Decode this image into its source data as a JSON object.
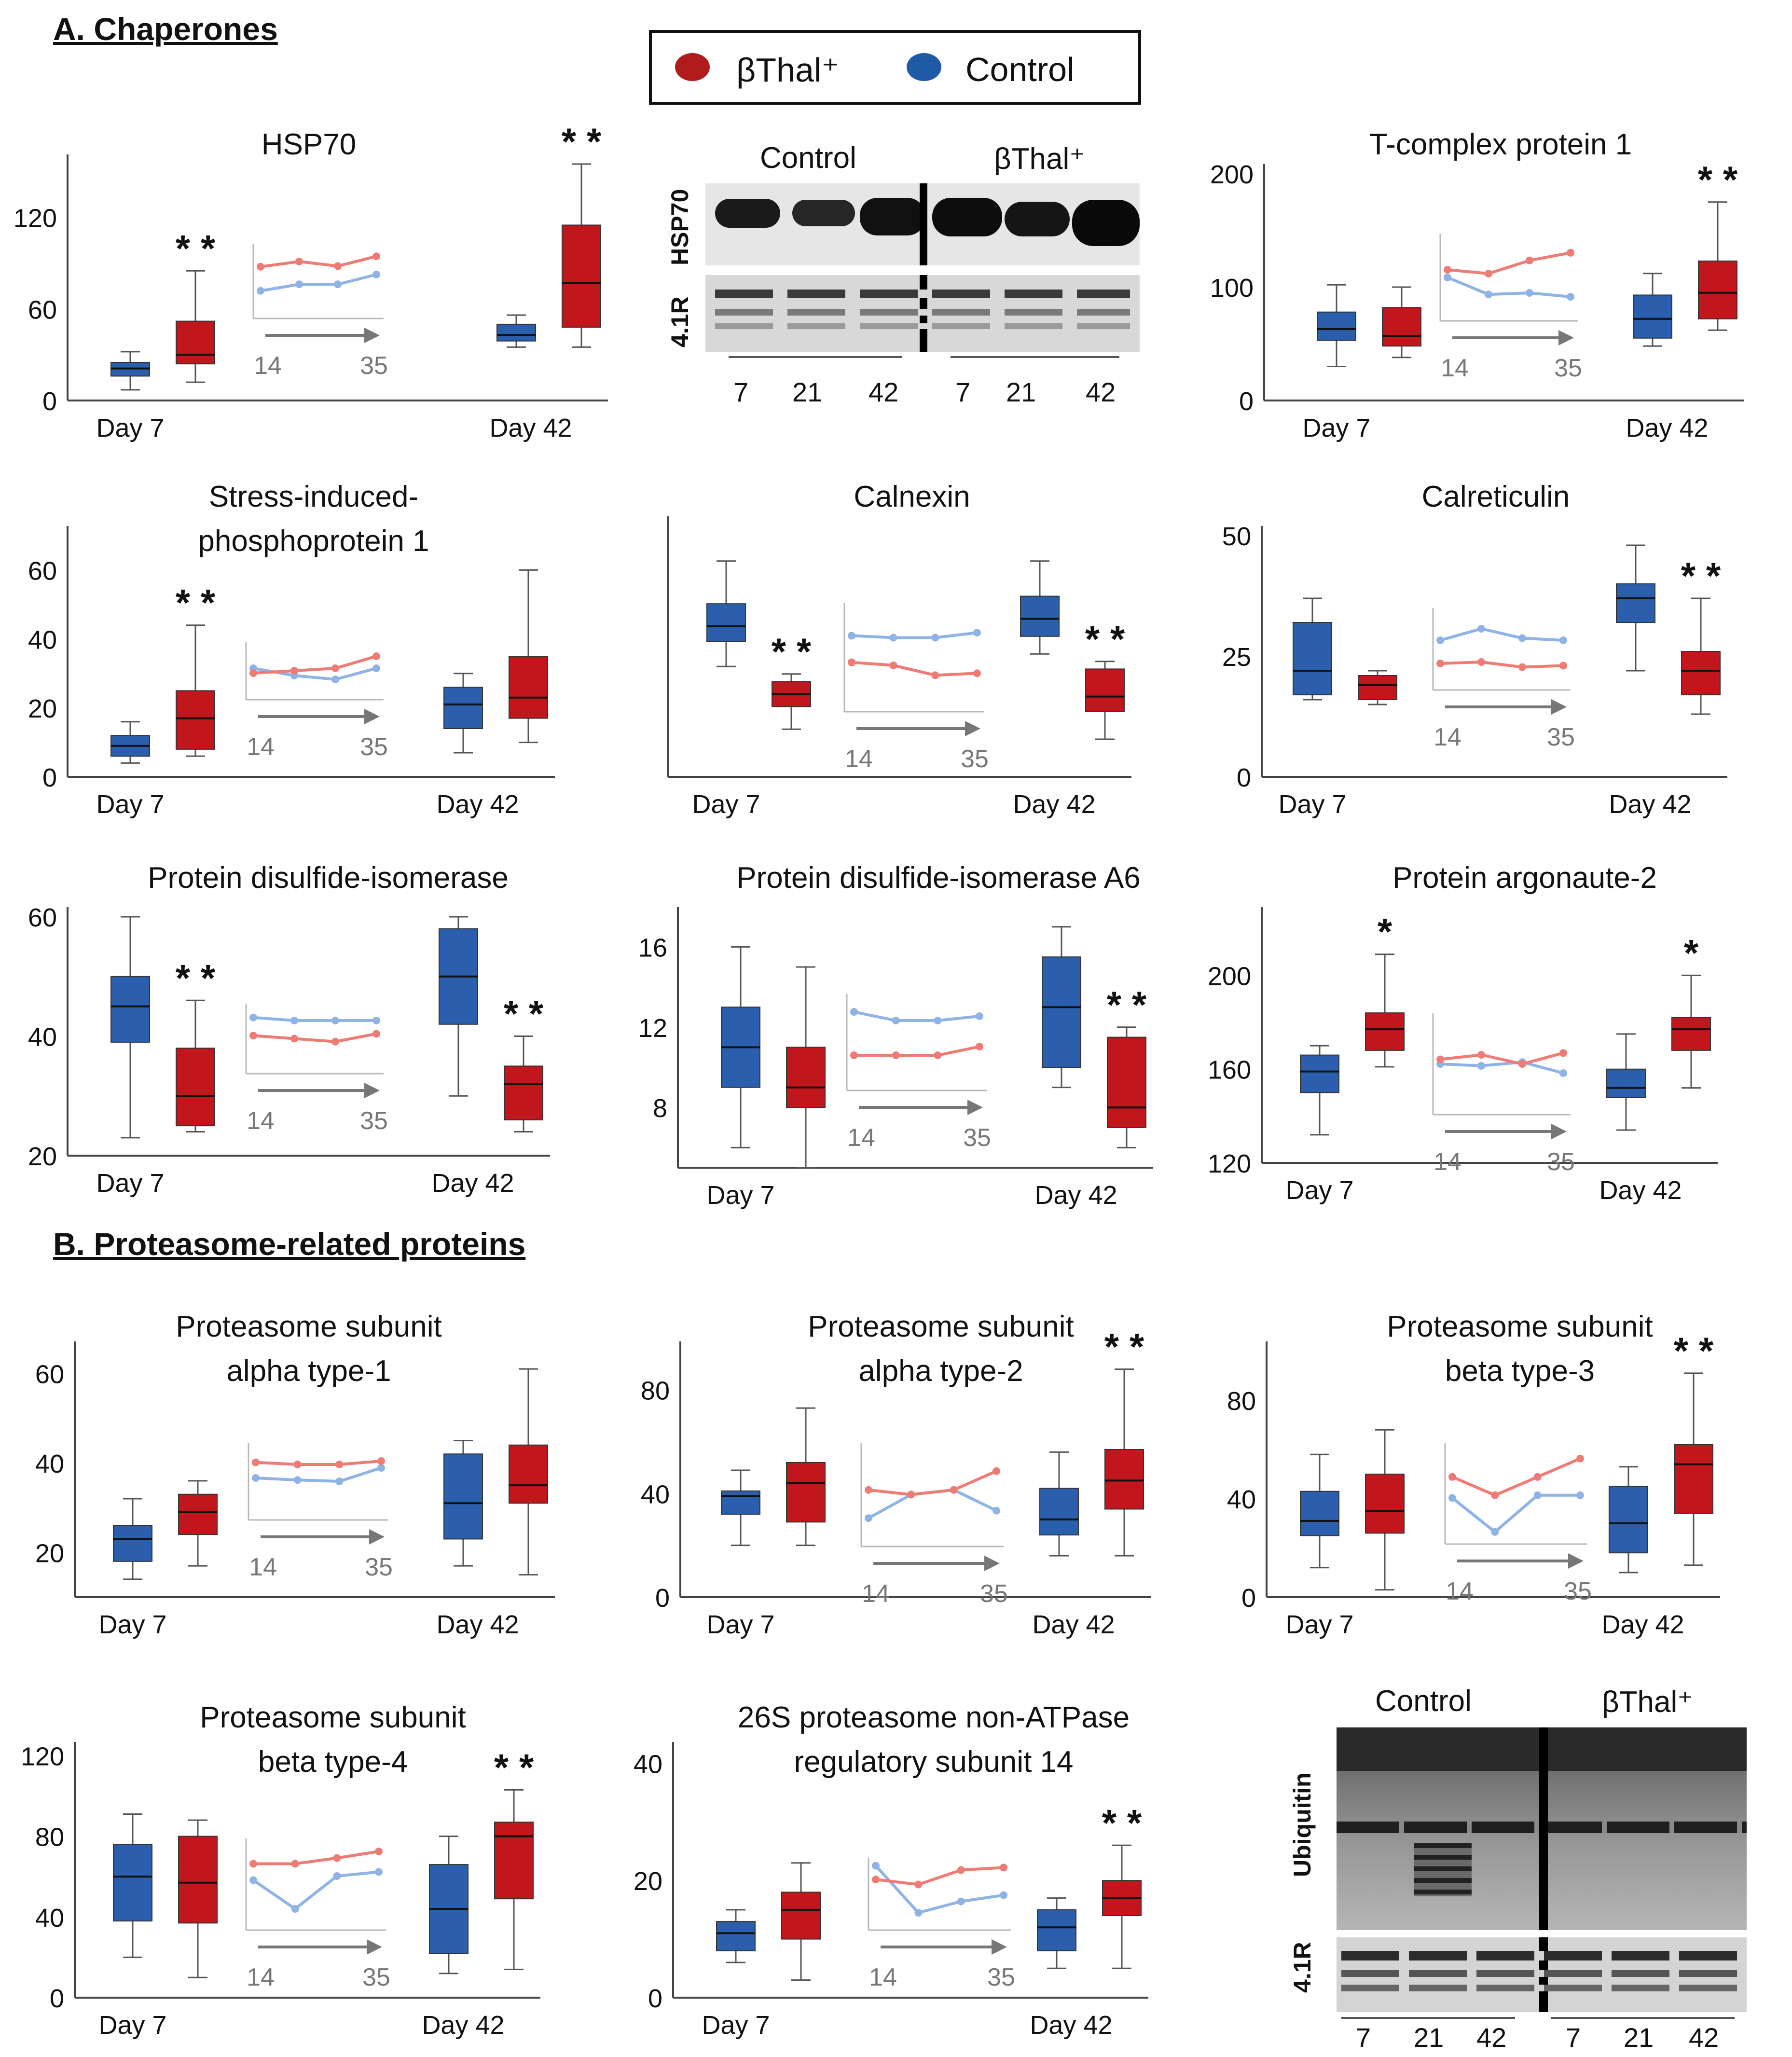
{
  "sections": {
    "a": "A. Chaperones",
    "b": "B. Proteasome-related proteins"
  },
  "legend": {
    "items": [
      {
        "label": "βThal⁺",
        "color": "#b01c1c"
      },
      {
        "label": "Control",
        "color": "#1f5aa6"
      }
    ]
  },
  "colors": {
    "control_box": "#2b5fad",
    "bthal_box": "#c0161c",
    "control_line": "#8fb3e4",
    "bthal_line": "#ef7b75",
    "inset_axis": "#b8b8b8",
    "arrow": "#777777"
  },
  "blots": {
    "hsp70": {
      "headers": [
        "Control",
        "βThal⁺"
      ],
      "rows": [
        "HSP70",
        "4.1R"
      ],
      "lanes": [
        "7",
        "21",
        "42",
        "7",
        "21",
        "42"
      ]
    },
    "ubiquitin": {
      "headers": [
        "Control",
        "βThal⁺"
      ],
      "rows": [
        "Ubiquitin",
        "4.1R"
      ],
      "lanes": [
        "7",
        "21",
        "42",
        "7",
        "21",
        "42"
      ]
    }
  },
  "chart_data": [
    {
      "id": "hsp70",
      "type": "box",
      "title": [
        "HSP70"
      ],
      "categories": [
        "Day 7",
        "Day 42"
      ],
      "yticks": [
        "0",
        "60",
        "120"
      ],
      "ylim": [
        0,
        155
      ],
      "boxes": [
        {
          "day": "Day 7",
          "group": "Control",
          "min": 7,
          "q1": 16,
          "median": 21,
          "q3": 25,
          "max": 32
        },
        {
          "day": "Day 7",
          "group": "βThal⁺",
          "min": 12,
          "q1": 24,
          "median": 30,
          "q3": 52,
          "max": 85
        },
        {
          "day": "Day 42",
          "group": "Control",
          "min": 35,
          "q1": 39,
          "median": 43,
          "q3": 50,
          "max": 56
        },
        {
          "day": "Day 42",
          "group": "βThal⁺",
          "min": 35,
          "q1": 48,
          "median": 77,
          "q3": 115,
          "max": 155
        }
      ],
      "significance": [
        {
          "day": "Day 7",
          "label": "* *"
        },
        {
          "day": "Day 42",
          "label": "* *"
        }
      ],
      "inset": {
        "xlabels": [
          "14",
          "35"
        ],
        "control": [
          0.35,
          0.45,
          0.45,
          0.6
        ],
        "bthal": [
          0.72,
          0.8,
          0.73,
          0.88
        ]
      }
    },
    {
      "id": "tcp1",
      "type": "box",
      "title": [
        "T-complex protein 1"
      ],
      "categories": [
        "Day 7",
        "Day 42"
      ],
      "yticks": [
        "0",
        "100",
        "200"
      ],
      "ylim": [
        0,
        200
      ],
      "boxes": [
        {
          "day": "Day 7",
          "group": "Control",
          "min": 30,
          "q1": 53,
          "median": 63,
          "q3": 78,
          "max": 102
        },
        {
          "day": "Day 7",
          "group": "βThal⁺",
          "min": 38,
          "q1": 48,
          "median": 57,
          "q3": 82,
          "max": 100
        },
        {
          "day": "Day 42",
          "group": "Control",
          "min": 48,
          "q1": 55,
          "median": 72,
          "q3": 93,
          "max": 112
        },
        {
          "day": "Day 42",
          "group": "βThal⁺",
          "min": 62,
          "q1": 72,
          "median": 95,
          "q3": 123,
          "max": 175
        }
      ],
      "significance": [
        {
          "day": "Day 42",
          "label": "* *"
        }
      ],
      "inset": {
        "xlabels": [
          "14",
          "35"
        ],
        "control": [
          0.5,
          0.28,
          0.3,
          0.25
        ],
        "bthal": [
          0.6,
          0.55,
          0.72,
          0.82
        ]
      }
    },
    {
      "id": "stip1",
      "type": "box",
      "title": [
        "Stress-induced-",
        "phosphoprotein 1"
      ],
      "categories": [
        "Day 7",
        "Day 42"
      ],
      "yticks": [
        "0",
        "20",
        "40",
        "60"
      ],
      "ylim": [
        0,
        70
      ],
      "boxes": [
        {
          "day": "Day 7",
          "group": "Control",
          "min": 4,
          "q1": 6,
          "median": 9,
          "q3": 12,
          "max": 16
        },
        {
          "day": "Day 7",
          "group": "βThal⁺",
          "min": 6,
          "q1": 8,
          "median": 17,
          "q3": 25,
          "max": 44
        },
        {
          "day": "Day 42",
          "group": "Control",
          "min": 7,
          "q1": 14,
          "median": 21,
          "q3": 26,
          "max": 30
        },
        {
          "day": "Day 42",
          "group": "βThal⁺",
          "min": 10,
          "q1": 17,
          "median": 23,
          "q3": 35,
          "max": 60
        }
      ],
      "significance": [
        {
          "day": "Day 7",
          "label": "* *"
        }
      ],
      "inset": {
        "xlabels": [
          "14",
          "35"
        ],
        "control": [
          0.55,
          0.4,
          0.32,
          0.55
        ],
        "bthal": [
          0.45,
          0.5,
          0.55,
          0.8
        ]
      }
    },
    {
      "id": "calnexin",
      "type": "box",
      "title": [
        "Calnexin"
      ],
      "categories": [
        "Day 7",
        "Day 42"
      ],
      "yticks": [],
      "ylim": [
        0,
        100
      ],
      "boxes": [
        {
          "day": "Day 7",
          "group": "Control",
          "min": 44,
          "q1": 54,
          "median": 60,
          "q3": 69,
          "max": 86
        },
        {
          "day": "Day 7",
          "group": "βThal⁺",
          "min": 19,
          "q1": 28,
          "median": 33,
          "q3": 38,
          "max": 41
        },
        {
          "day": "Day 42",
          "group": "Control",
          "min": 49,
          "q1": 56,
          "median": 63,
          "q3": 72,
          "max": 86
        },
        {
          "day": "Day 42",
          "group": "βThal⁺",
          "min": 15,
          "q1": 26,
          "median": 32,
          "q3": 43,
          "max": 46
        }
      ],
      "significance": [
        {
          "day": "Day 7",
          "label": "* *"
        },
        {
          "day": "Day 42",
          "label": "* *"
        }
      ],
      "inset": {
        "xlabels": [
          "14",
          "35"
        ],
        "control": [
          0.72,
          0.7,
          0.7,
          0.75
        ],
        "bthal": [
          0.45,
          0.42,
          0.32,
          0.34
        ]
      }
    },
    {
      "id": "calreticulin",
      "type": "box",
      "title": [
        "Calreticulin"
      ],
      "categories": [
        "Day 7",
        "Day 42"
      ],
      "yticks": [
        "0",
        "25",
        "50"
      ],
      "ylim": [
        0,
        50
      ],
      "boxes": [
        {
          "day": "Day 7",
          "group": "Control",
          "min": 16,
          "q1": 17,
          "median": 22,
          "q3": 32,
          "max": 37
        },
        {
          "day": "Day 7",
          "group": "βThal⁺",
          "min": 15,
          "q1": 16,
          "median": 19,
          "q3": 21,
          "max": 22
        },
        {
          "day": "Day 42",
          "group": "Control",
          "min": 22,
          "q1": 32,
          "median": 37,
          "q3": 40,
          "max": 48
        },
        {
          "day": "Day 42",
          "group": "βThal⁺",
          "min": 13,
          "q1": 17,
          "median": 22,
          "q3": 26,
          "max": 37
        }
      ],
      "significance": [
        {
          "day": "Day 42",
          "label": "* *"
        }
      ],
      "inset": {
        "xlabels": [
          "14",
          "35"
        ],
        "control": [
          0.62,
          0.78,
          0.65,
          0.62
        ],
        "bthal": [
          0.3,
          0.32,
          0.25,
          0.27
        ]
      }
    },
    {
      "id": "pdi",
      "type": "box",
      "title": [
        "Protein disulfide-isomerase"
      ],
      "categories": [
        "Day 7",
        "Day 42"
      ],
      "yticks": [
        "20",
        "40",
        "60"
      ],
      "ylim": [
        20,
        60
      ],
      "boxes": [
        {
          "day": "Day 7",
          "group": "Control",
          "min": 23,
          "q1": 39,
          "median": 45,
          "q3": 50,
          "max": 60
        },
        {
          "day": "Day 7",
          "group": "βThal⁺",
          "min": 24,
          "q1": 25,
          "median": 30,
          "q3": 38,
          "max": 46
        },
        {
          "day": "Day 42",
          "group": "Control",
          "min": 30,
          "q1": 42,
          "median": 50,
          "q3": 58,
          "max": 60
        },
        {
          "day": "Day 42",
          "group": "βThal⁺",
          "min": 24,
          "q1": 26,
          "median": 32,
          "q3": 35,
          "max": 40
        }
      ],
      "significance": [
        {
          "day": "Day 7",
          "label": "* *"
        },
        {
          "day": "Day 42",
          "label": "* *"
        }
      ],
      "inset": {
        "xlabels": [
          "14",
          "35"
        ],
        "control": [
          0.85,
          0.8,
          0.8,
          0.8
        ],
        "bthal": [
          0.55,
          0.5,
          0.45,
          0.58
        ]
      }
    },
    {
      "id": "pdia6",
      "type": "box",
      "title": [
        "Protein disulfide-isomerase A6"
      ],
      "categories": [
        "Day 7",
        "Day 42"
      ],
      "yticks": [
        "8",
        "12",
        "16"
      ],
      "ylim": [
        5,
        17.5
      ],
      "boxes": [
        {
          "day": "Day 7",
          "group": "Control",
          "min": 6,
          "q1": 9,
          "median": 11,
          "q3": 13,
          "max": 16
        },
        {
          "day": "Day 7",
          "group": "βThal⁺",
          "min": 5,
          "q1": 8,
          "median": 9,
          "q3": 11,
          "max": 15
        },
        {
          "day": "Day 42",
          "group": "Control",
          "min": 9,
          "q1": 10,
          "median": 13,
          "q3": 15.5,
          "max": 17
        },
        {
          "day": "Day 42",
          "group": "βThal⁺",
          "min": 6,
          "q1": 7,
          "median": 8,
          "q3": 11.5,
          "max": 12
        }
      ],
      "significance": [
        {
          "day": "Day 42",
          "label": "* *"
        }
      ],
      "inset": {
        "xlabels": [
          "14",
          "35"
        ],
        "control": [
          0.85,
          0.75,
          0.75,
          0.8
        ],
        "bthal": [
          0.35,
          0.35,
          0.35,
          0.45
        ]
      }
    },
    {
      "id": "ago2",
      "type": "box",
      "title": [
        "Protein argonaute-2"
      ],
      "categories": [
        "Day 7",
        "Day 42"
      ],
      "yticks": [
        "120",
        "160",
        "200"
      ],
      "ylim": [
        120,
        225
      ],
      "boxes": [
        {
          "day": "Day 7",
          "group": "Control",
          "min": 132,
          "q1": 150,
          "median": 159,
          "q3": 166,
          "max": 170
        },
        {
          "day": "Day 7",
          "group": "βThal⁺",
          "min": 161,
          "q1": 168,
          "median": 177,
          "q3": 184,
          "max": 209
        },
        {
          "day": "Day 42",
          "group": "Control",
          "min": 134,
          "q1": 148,
          "median": 152,
          "q3": 160,
          "max": 175
        },
        {
          "day": "Day 42",
          "group": "βThal⁺",
          "min": 152,
          "q1": 168,
          "median": 177,
          "q3": 182,
          "max": 200
        }
      ],
      "significance": [
        {
          "day": "Day 7",
          "label": "*"
        },
        {
          "day": "Day 42",
          "label": "*"
        }
      ],
      "inset": {
        "xlabels": [
          "14",
          "35"
        ],
        "control": [
          0.5,
          0.48,
          0.52,
          0.4
        ],
        "bthal": [
          0.55,
          0.6,
          0.5,
          0.62
        ]
      }
    },
    {
      "id": "psma1",
      "type": "box",
      "title": [
        "Proteasome subunit",
        "alpha type-1"
      ],
      "categories": [
        "Day 7",
        "Day 42"
      ],
      "yticks": [
        "20",
        "40",
        "60"
      ],
      "ylim": [
        10,
        65
      ],
      "boxes": [
        {
          "day": "Day 7",
          "group": "Control",
          "min": 14,
          "q1": 18,
          "median": 23,
          "q3": 26,
          "max": 32
        },
        {
          "day": "Day 7",
          "group": "βThal⁺",
          "min": 17,
          "q1": 24,
          "median": 29,
          "q3": 33,
          "max": 36
        },
        {
          "day": "Day 42",
          "group": "Control",
          "min": 17,
          "q1": 23,
          "median": 31,
          "q3": 42,
          "max": 45
        },
        {
          "day": "Day 42",
          "group": "βThal⁺",
          "min": 15,
          "q1": 31,
          "median": 35,
          "q3": 44,
          "max": 61
        }
      ],
      "significance": [],
      "inset": {
        "xlabels": [
          "14",
          "35"
        ],
        "control": [
          0.55,
          0.52,
          0.5,
          0.7
        ],
        "bthal": [
          0.78,
          0.75,
          0.75,
          0.8
        ]
      }
    },
    {
      "id": "psma2",
      "type": "box",
      "title": [
        "Proteasome subunit",
        "alpha type-2"
      ],
      "categories": [
        "Day 7",
        "Day 42"
      ],
      "yticks": [
        "0",
        "40",
        "80"
      ],
      "ylim": [
        0,
        95
      ],
      "boxes": [
        {
          "day": "Day 7",
          "group": "Control",
          "min": 20,
          "q1": 32,
          "median": 39,
          "q3": 41,
          "max": 49
        },
        {
          "day": "Day 7",
          "group": "βThal⁺",
          "min": 20,
          "q1": 29,
          "median": 44,
          "q3": 52,
          "max": 73
        },
        {
          "day": "Day 42",
          "group": "Control",
          "min": 16,
          "q1": 24,
          "median": 30,
          "q3": 42,
          "max": 56
        },
        {
          "day": "Day 42",
          "group": "βThal⁺",
          "min": 16,
          "q1": 34,
          "median": 45,
          "q3": 57,
          "max": 88
        }
      ],
      "significance": [
        {
          "day": "Day 42",
          "label": "* *"
        }
      ],
      "inset": {
        "xlabels": [
          "14",
          "35"
        ],
        "control": [
          0.25,
          0.5,
          0.55,
          0.33
        ],
        "bthal": [
          0.55,
          0.5,
          0.55,
          0.75
        ]
      }
    },
    {
      "id": "psmb3",
      "type": "box",
      "title": [
        "Proteasome subunit",
        "beta type-3"
      ],
      "categories": [
        "Day 7",
        "Day 42"
      ],
      "yticks": [
        "0",
        "40",
        "80"
      ],
      "ylim": [
        0,
        100
      ],
      "boxes": [
        {
          "day": "Day 7",
          "group": "Control",
          "min": 12,
          "q1": 25,
          "median": 31,
          "q3": 43,
          "max": 58
        },
        {
          "day": "Day 7",
          "group": "βThal⁺",
          "min": 3,
          "q1": 26,
          "median": 35,
          "q3": 50,
          "max": 68
        },
        {
          "day": "Day 42",
          "group": "Control",
          "min": 10,
          "q1": 18,
          "median": 30,
          "q3": 45,
          "max": 53
        },
        {
          "day": "Day 42",
          "group": "βThal⁺",
          "min": 13,
          "q1": 34,
          "median": 54,
          "q3": 62,
          "max": 91
        }
      ],
      "significance": [
        {
          "day": "Day 42",
          "label": "* *"
        }
      ],
      "inset": {
        "xlabels": [
          "14",
          "35"
        ],
        "control": [
          0.45,
          0.08,
          0.48,
          0.48
        ],
        "bthal": [
          0.68,
          0.48,
          0.68,
          0.88
        ]
      }
    },
    {
      "id": "psmb4",
      "type": "box",
      "title": [
        "Proteasome subunit",
        "beta type-4"
      ],
      "categories": [
        "Day 7",
        "Day 42"
      ],
      "yticks": [
        "0",
        "40",
        "80",
        "120"
      ],
      "ylim": [
        0,
        122
      ],
      "boxes": [
        {
          "day": "Day 7",
          "group": "Control",
          "min": 20,
          "q1": 38,
          "median": 60,
          "q3": 76,
          "max": 91
        },
        {
          "day": "Day 7",
          "group": "βThal⁺",
          "min": 10,
          "q1": 37,
          "median": 57,
          "q3": 80,
          "max": 88
        },
        {
          "day": "Day 42",
          "group": "Control",
          "min": 12,
          "q1": 22,
          "median": 44,
          "q3": 66,
          "max": 80
        },
        {
          "day": "Day 42",
          "group": "βThal⁺",
          "min": 14,
          "q1": 49,
          "median": 80,
          "q3": 87,
          "max": 103
        }
      ],
      "significance": [
        {
          "day": "Day 42",
          "label": "* *"
        }
      ],
      "inset": {
        "xlabels": [
          "14",
          "35"
        ],
        "control": [
          0.55,
          0.2,
          0.6,
          0.65
        ],
        "bthal": [
          0.75,
          0.75,
          0.82,
          0.9
        ]
      }
    },
    {
      "id": "psmd14",
      "type": "box",
      "title": [
        "26S proteasome non-ATPase",
        "regulatory subunit 14"
      ],
      "categories": [
        "Day 7",
        "Day 42"
      ],
      "yticks": [
        "0",
        "20",
        "40"
      ],
      "ylim": [
        0,
        42
      ],
      "boxes": [
        {
          "day": "Day 7",
          "group": "Control",
          "min": 6,
          "q1": 8,
          "median": 11,
          "q3": 13,
          "max": 15
        },
        {
          "day": "Day 7",
          "group": "βThal⁺",
          "min": 3,
          "q1": 10,
          "median": 15,
          "q3": 18,
          "max": 23
        },
        {
          "day": "Day 42",
          "group": "Control",
          "min": 5,
          "q1": 8,
          "median": 12,
          "q3": 15,
          "max": 17
        },
        {
          "day": "Day 42",
          "group": "βThal⁺",
          "min": 5,
          "q1": 14,
          "median": 17,
          "q3": 20,
          "max": 26
        }
      ],
      "significance": [
        {
          "day": "Day 42",
          "label": "* *"
        }
      ],
      "inset": {
        "xlabels": [
          "14",
          "35"
        ],
        "control": [
          0.95,
          0.2,
          0.38,
          0.48
        ],
        "bthal": [
          0.73,
          0.65,
          0.88,
          0.92
        ]
      }
    }
  ]
}
